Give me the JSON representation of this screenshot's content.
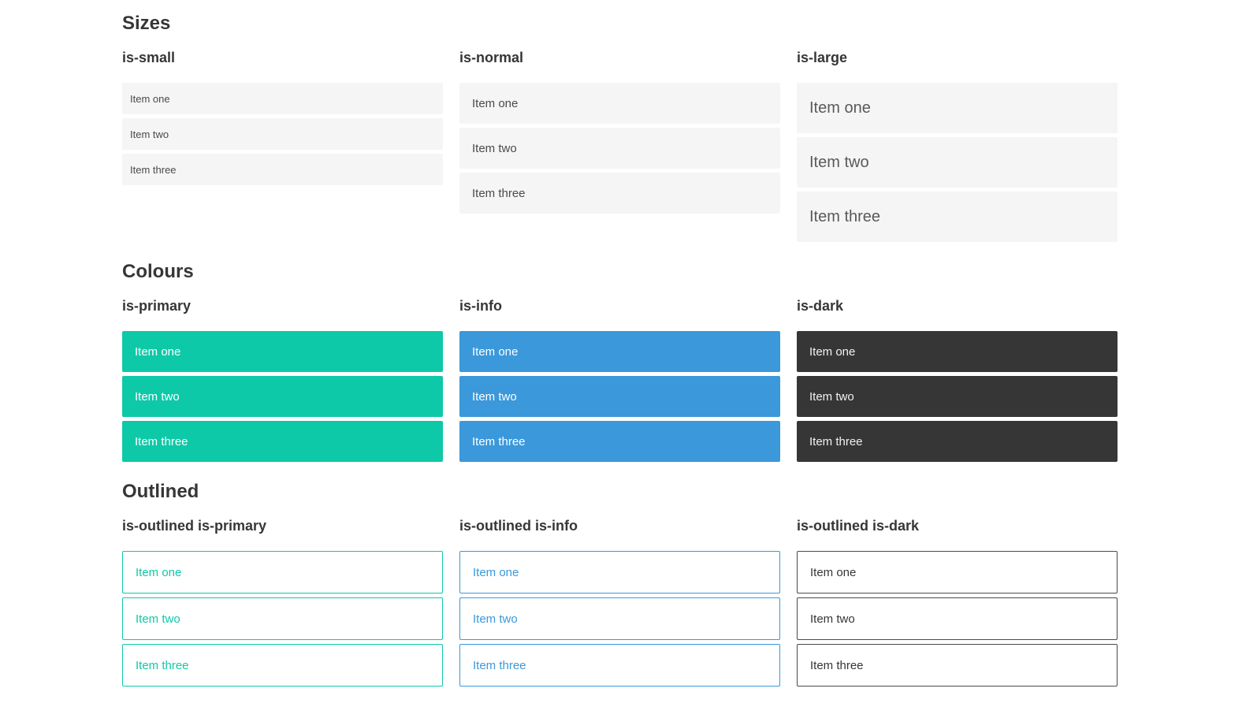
{
  "colors": {
    "primary": "#0dc9a8",
    "info": "#3a98db",
    "dark": "#363636",
    "light": "#f5f5f5",
    "text": "#4a4a4a",
    "heading": "#363636"
  },
  "sections": [
    {
      "title": "Sizes",
      "groups": [
        {
          "label": "is-small",
          "variant": "small",
          "items": [
            "Item one",
            "Item two",
            "Item three"
          ]
        },
        {
          "label": "is-normal",
          "variant": "normal",
          "items": [
            "Item one",
            "Item two",
            "Item three"
          ]
        },
        {
          "label": "is-large",
          "variant": "large",
          "items": [
            "Item one",
            "Item two",
            "Item three"
          ]
        }
      ]
    },
    {
      "title": "Colours",
      "groups": [
        {
          "label": "is-primary",
          "variant": "primary",
          "items": [
            "Item one",
            "Item two",
            "Item three"
          ]
        },
        {
          "label": "is-info",
          "variant": "info",
          "items": [
            "Item one",
            "Item two",
            "Item three"
          ]
        },
        {
          "label": "is-dark",
          "variant": "dark",
          "items": [
            "Item one",
            "Item two",
            "Item three"
          ]
        }
      ]
    },
    {
      "title": "Outlined",
      "groups": [
        {
          "label": "is-outlined is-primary",
          "variant": "outlined-primary",
          "items": [
            "Item one",
            "Item two",
            "Item three"
          ]
        },
        {
          "label": "is-outlined is-info",
          "variant": "outlined-info",
          "items": [
            "Item one",
            "Item two",
            "Item three"
          ]
        },
        {
          "label": "is-outlined is-dark",
          "variant": "outlined-dark",
          "items": [
            "Item one",
            "Item two",
            "Item three"
          ]
        }
      ]
    }
  ]
}
